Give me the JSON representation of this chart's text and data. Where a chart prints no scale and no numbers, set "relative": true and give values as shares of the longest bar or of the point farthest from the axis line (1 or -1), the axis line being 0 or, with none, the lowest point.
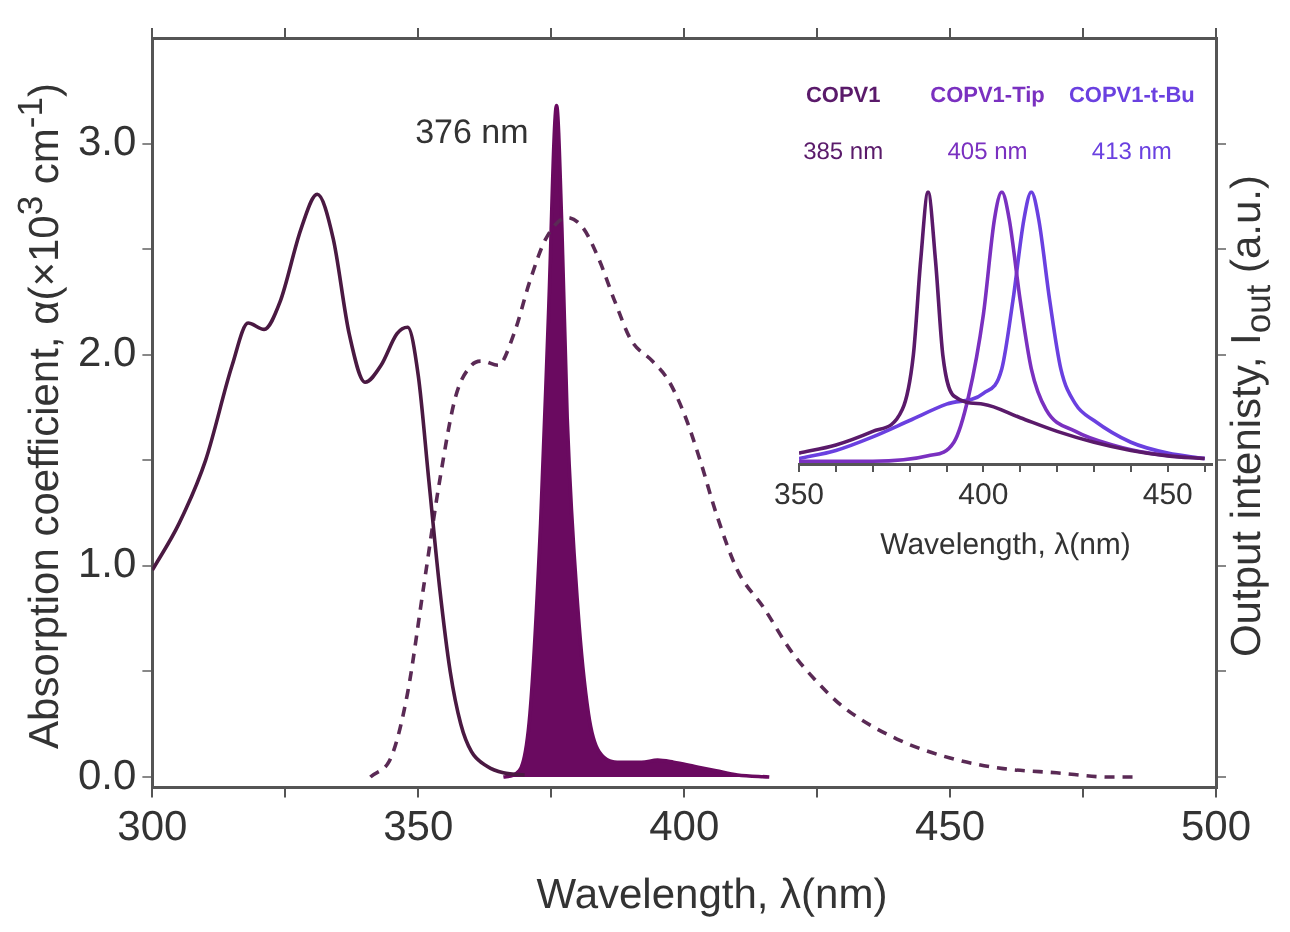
{
  "chart_data": [
    {
      "type": "line",
      "xlabel": "Wavelength, λ(nm)",
      "ylabel": "Absorption coefficient, α(×10$^{3}$ cm$^{-1}$)",
      "y2label": "Output intenisty, I$_{out}$ (a.u.)",
      "xlim": [
        300,
        500
      ],
      "xticks": [
        300,
        {
          "value": 325,
          "label": null
        },
        350,
        {
          "value": 375,
          "label": null
        },
        400,
        {
          "value": 425,
          "label": null
        },
        450,
        {
          "value": 475,
          "label": null
        },
        500
      ],
      "ylim": [
        -0.05,
        3.5
      ],
      "yticks": [
        {
          "value": 0,
          "label": "0.0"
        },
        {
          "value": 0.5,
          "label": null
        },
        {
          "value": 1,
          "label": "1.0"
        },
        {
          "value": 1.5,
          "label": null
        },
        {
          "value": 2,
          "label": "2.0"
        },
        {
          "value": 2.5,
          "label": null
        },
        {
          "value": 3,
          "label": "3.0"
        }
      ],
      "grid": false,
      "legend": false,
      "annotations": [
        {
          "text": "376 nm",
          "x": 376,
          "y": 3.18
        }
      ],
      "series": [
        {
          "color": "#4a1942",
          "line_style": "solid",
          "x": [
            300,
            305,
            310,
            315,
            318,
            321,
            324,
            328,
            331,
            334,
            337,
            340,
            343,
            346,
            348,
            350,
            352,
            354,
            356,
            358,
            360,
            363,
            366,
            370
          ],
          "values": [
            0.98,
            1.2,
            1.5,
            1.95,
            2.15,
            2.12,
            2.25,
            2.6,
            2.76,
            2.55,
            2.1,
            1.87,
            1.95,
            2.1,
            2.13,
            1.9,
            1.4,
            0.9,
            0.5,
            0.25,
            0.12,
            0.05,
            0.02,
            0.01
          ]
        },
        {
          "color": "#5a2a55",
          "line_style": "dashed",
          "x": [
            341,
            345,
            348,
            351,
            354,
            357,
            360,
            362,
            365,
            368,
            371,
            374,
            378,
            381,
            384,
            387,
            390,
            394,
            397,
            400,
            403,
            406,
            410,
            415,
            420,
            425,
            430,
            440,
            450,
            460,
            470,
            480,
            485
          ],
          "values": [
            0,
            0.1,
            0.4,
            0.9,
            1.4,
            1.8,
            1.95,
            1.97,
            1.95,
            2.1,
            2.35,
            2.55,
            2.65,
            2.6,
            2.45,
            2.25,
            2.07,
            1.97,
            1.88,
            1.72,
            1.5,
            1.25,
            0.98,
            0.8,
            0.6,
            0.45,
            0.33,
            0.18,
            0.09,
            0.04,
            0.02,
            0,
            0
          ]
        },
        {
          "type": "area",
          "color": "#6a0a60",
          "x": [
            366,
            369,
            371,
            373,
            374.5,
            376,
            377,
            378,
            380,
            382,
            384,
            388,
            392,
            395,
            398,
            402,
            406,
            410,
            416
          ],
          "values": [
            0,
            0.03,
            0.3,
            1.2,
            2.2,
            3.18,
            2.6,
            1.7,
            0.8,
            0.3,
            0.12,
            0.07,
            0.07,
            0.08,
            0.07,
            0.05,
            0.03,
            0.01,
            0
          ]
        }
      ]
    },
    {
      "type": "line",
      "relative": true,
      "xlabel": "Wavelength, λ(nm)",
      "xlim": [
        350,
        462
      ],
      "xticks": [
        350,
        {
          "value": 360,
          "label": null
        },
        {
          "value": 370,
          "label": null
        },
        {
          "value": 380,
          "label": null
        },
        {
          "value": 390,
          "label": null
        },
        400,
        {
          "value": 410,
          "label": null
        },
        {
          "value": 420,
          "label": null
        },
        {
          "value": 430,
          "label": null
        },
        {
          "value": 440,
          "label": null
        },
        450,
        {
          "value": 460,
          "label": null
        }
      ],
      "grid": false,
      "legend": false,
      "tick_labels": "x",
      "annotations": [
        "385 nm",
        "405 nm",
        "413 nm"
      ],
      "series": [
        {
          "name": "COPV1",
          "color": "#5a1a6a",
          "x": [
            350,
            360,
            370,
            378,
            381,
            383,
            385,
            387,
            389,
            392,
            400,
            410,
            420,
            430,
            440,
            450,
            460
          ],
          "values": [
            0.04,
            0.07,
            0.12,
            0.2,
            0.4,
            0.75,
            1,
            0.75,
            0.4,
            0.25,
            0.22,
            0.17,
            0.12,
            0.08,
            0.05,
            0.03,
            0.02
          ]
        },
        {
          "name": "COPV1-Tip",
          "color": "#7a30c0",
          "x": [
            350,
            370,
            385,
            392,
            396,
            400,
            403,
            405,
            407,
            410,
            413,
            417,
            425,
            435,
            445,
            460
          ],
          "values": [
            0.01,
            0.01,
            0.03,
            0.08,
            0.25,
            0.55,
            0.9,
            1,
            0.9,
            0.6,
            0.35,
            0.2,
            0.12,
            0.07,
            0.04,
            0.02
          ]
        },
        {
          "name": "COPV1-t-Bu",
          "color": "#6a40e0",
          "x": [
            350,
            360,
            370,
            380,
            390,
            400,
            405,
            408,
            411,
            413,
            415,
            418,
            421,
            425,
            430,
            440,
            450,
            460
          ],
          "values": [
            0.02,
            0.05,
            0.1,
            0.16,
            0.22,
            0.26,
            0.35,
            0.6,
            0.9,
            1,
            0.9,
            0.6,
            0.35,
            0.22,
            0.16,
            0.08,
            0.04,
            0.02
          ]
        }
      ]
    }
  ]
}
